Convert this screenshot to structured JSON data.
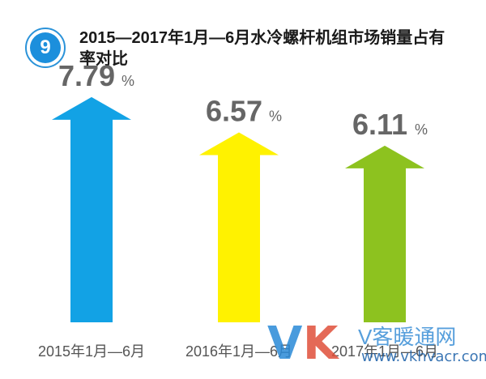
{
  "badge": {
    "number": "9",
    "color": "#1c8fdc"
  },
  "title": "2015—2017年1月—6月水冷螺杆机组市场销量占有率对比",
  "chart_data": {
    "type": "bar",
    "title": "2015—2017年1月—6月水冷螺杆机组市场销量占有率对比",
    "categories": [
      "2015年1月—6月",
      "2016年1月—6月",
      "2017年1月—6月"
    ],
    "values": [
      7.79,
      6.57,
      6.11
    ],
    "value_labels": [
      "7.79",
      "6.57",
      "6.11"
    ],
    "unit": "%",
    "bar_colors": [
      "#12a2e5",
      "#fff200",
      "#8dc21f"
    ],
    "label_color": "#666666",
    "grid": false
  },
  "watermark": {
    "v": "V",
    "k": "K",
    "cn": "V客暖通网",
    "url": "www.vkhvacr.com"
  }
}
